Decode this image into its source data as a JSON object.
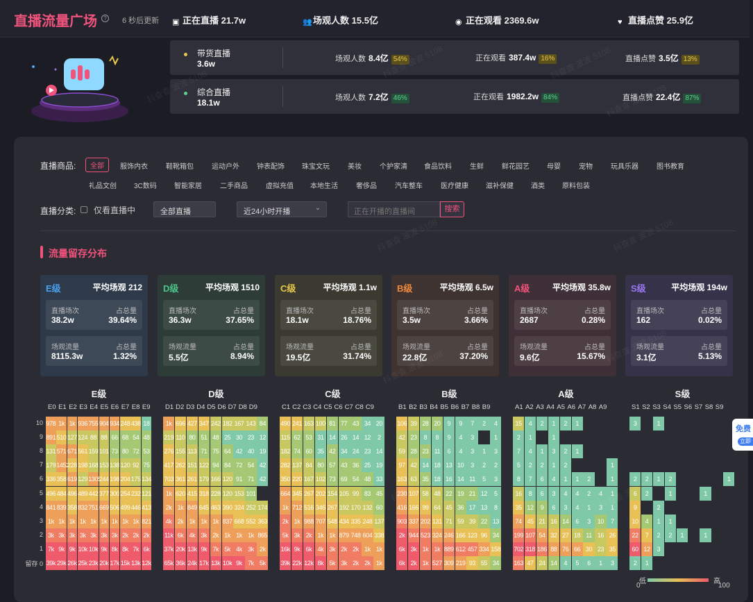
{
  "header": {
    "title": "直播流量广场",
    "update": "6 秒后更新",
    "stats": [
      {
        "icon": "calendar-icon",
        "label": "正在直播",
        "value": "21.7w"
      },
      {
        "icon": "users-icon",
        "label": "场观人数",
        "value": "15.5亿"
      },
      {
        "icon": "eye-icon",
        "label": "正在观看",
        "value": "2369.6w"
      },
      {
        "icon": "heart-icon",
        "label": "直播点赞",
        "value": "25.9亿"
      }
    ]
  },
  "categories": [
    {
      "name": "带货直播",
      "value": "3.6w",
      "dot": "#e8c84a",
      "metrics": [
        {
          "label": "场观人数",
          "value": "8.4亿",
          "pct": "54%",
          "tone": "y"
        },
        {
          "label": "正在观看",
          "value": "387.4w",
          "pct": "16%",
          "tone": "y"
        },
        {
          "label": "直播点赞",
          "value": "3.5亿",
          "pct": "13%",
          "tone": "y"
        }
      ]
    },
    {
      "name": "综合直播",
      "value": "18.1w",
      "dot": "#5ed08c",
      "metrics": [
        {
          "label": "场观人数",
          "value": "7.2亿",
          "pct": "46%",
          "tone": "g"
        },
        {
          "label": "正在观看",
          "value": "1982.2w",
          "pct": "84%",
          "tone": "g"
        },
        {
          "label": "直播点赞",
          "value": "22.4亿",
          "pct": "87%",
          "tone": "g"
        }
      ]
    }
  ],
  "filters": {
    "goods_label": "直播商品:",
    "goods": [
      "全部",
      "服饰内衣",
      "鞋靴箱包",
      "运动户外",
      "钟表配饰",
      "珠宝文玩",
      "美妆",
      "个护家清",
      "食品饮料",
      "生鲜",
      "鲜花园艺",
      "母婴",
      "宠物",
      "玩具乐器",
      "图书教育",
      "礼品文创",
      "3C数码",
      "智能家居",
      "二手商品",
      "虚拟充值",
      "本地生活",
      "奢侈品",
      "汽车整车",
      "医疗健康",
      "滋补保健",
      "酒类",
      "原料包装"
    ],
    "class_label": "直播分类:",
    "only_live": "仅看直播中",
    "select1": "全部直播",
    "select2": "近24小时开播",
    "search_placeholder": "正在开播的直播间",
    "search_btn": "搜索"
  },
  "section": {
    "title": "流量留存分布"
  },
  "levels": [
    {
      "grade": "E级",
      "color": "#4aa0f0",
      "bg": "#2e3a4a",
      "avg_label": "平均场观",
      "avg": "212",
      "b1": [
        "直播场次",
        "占总量",
        "38.2w",
        "39.64%"
      ],
      "b2": [
        "场观流量",
        "占总量",
        "8115.3w",
        "1.32%"
      ]
    },
    {
      "grade": "D级",
      "color": "#4cc48a",
      "bg": "#2d3c37",
      "avg_label": "平均场观",
      "avg": "1510",
      "b1": [
        "直播场次",
        "占总量",
        "36.3w",
        "37.65%"
      ],
      "b2": [
        "场观流量",
        "占总量",
        "5.5亿",
        "8.94%"
      ]
    },
    {
      "grade": "C级",
      "color": "#e8c84a",
      "bg": "#3b3a30",
      "avg_label": "平均场观",
      "avg": "1.1w",
      "b1": [
        "直播场次",
        "占总量",
        "18.1w",
        "18.76%"
      ],
      "b2": [
        "场观流量",
        "占总量",
        "19.5亿",
        "31.74%"
      ]
    },
    {
      "grade": "B级",
      "color": "#f08a3c",
      "bg": "#3e3330",
      "avg_label": "平均场观",
      "avg": "6.5w",
      "b1": [
        "直播场次",
        "占总量",
        "3.5w",
        "3.66%"
      ],
      "b2": [
        "场观流量",
        "占总量",
        "22.8亿",
        "37.20%"
      ]
    },
    {
      "grade": "A级",
      "color": "#f0537c",
      "bg": "#3f2f36",
      "avg_label": "平均场观",
      "avg": "35.8w",
      "b1": [
        "直播场次",
        "占总量",
        "2687",
        "0.28%"
      ],
      "b2": [
        "场观流量",
        "占总量",
        "9.6亿",
        "15.67%"
      ]
    },
    {
      "grade": "S级",
      "color": "#9b78f0",
      "bg": "#36324a",
      "avg_label": "平均场观",
      "avg": "194w",
      "b1": [
        "直播场次",
        "占总量",
        "162",
        "0.02%"
      ],
      "b2": [
        "场观流量",
        "占总量",
        "3.1亿",
        "5.13%"
      ]
    }
  ],
  "heatmap": {
    "row_labels": [
      "10",
      "9",
      "8",
      "7",
      "6",
      "5",
      "4",
      "3",
      "2",
      "1",
      "留存 0"
    ],
    "grids": [
      {
        "title": "E级",
        "cols": [
          "E0",
          "E1",
          "E2",
          "E3",
          "E4",
          "E5",
          "E6",
          "E7",
          "E8",
          "E9"
        ],
        "rows": [
          [
            "978",
            "1k",
            "1k",
            "936",
            "755",
            "904",
            "934",
            "248",
            "438",
            "18"
          ],
          [
            "891",
            "510",
            "127",
            "124",
            "88",
            "88",
            "66",
            "68",
            "54",
            "48"
          ],
          [
            "131",
            "571",
            "671",
            "561",
            "159",
            "101",
            "73",
            "80",
            "72",
            "53"
          ],
          [
            "179",
            "1452",
            "228",
            "198",
            "168",
            "153",
            "138",
            "120",
            "92",
            "75"
          ],
          [
            "336",
            "358",
            "619",
            "129",
            "1305",
            "244",
            "198",
            "204",
            "175",
            "134"
          ],
          [
            "496",
            "484",
            "496",
            "489",
            "442",
            "377",
            "300",
            "254",
            "232",
            "121"
          ],
          [
            "841",
            "839",
            "358",
            "832",
            "751",
            "669",
            "506",
            "499",
            "446",
            "413"
          ],
          [
            "1k",
            "1k",
            "1k",
            "1k",
            "1k",
            "1k",
            "1k",
            "1k",
            "1k",
            "821"
          ],
          [
            "3k",
            "3k",
            "3k",
            "3k",
            "3k",
            "3k",
            "3k",
            "2k",
            "2k",
            "2k"
          ],
          [
            "7k",
            "9k",
            "9k",
            "10k",
            "10k",
            "9k",
            "8k",
            "8k",
            "7k",
            "6k"
          ],
          [
            "39k",
            "29k",
            "26k",
            "25k",
            "23k",
            "20k",
            "17k",
            "15k",
            "13k",
            "12k"
          ]
        ]
      },
      {
        "title": "D级",
        "cols": [
          "D1",
          "D2",
          "D3",
          "D4",
          "D5",
          "D6",
          "D7",
          "D8",
          "D9"
        ],
        "rows": [
          [
            "1k",
            "696",
            "427",
            "347",
            "242",
            "182",
            "167",
            "143",
            "84"
          ],
          [
            "219",
            "110",
            "80",
            "51",
            "48",
            "25",
            "30",
            "23",
            "12"
          ],
          [
            "276",
            "155",
            "113",
            "71",
            "75",
            "64",
            "42",
            "40",
            "19"
          ],
          [
            "417",
            "262",
            "151",
            "122",
            "94",
            "84",
            "72",
            "54",
            "42"
          ],
          [
            "703",
            "361",
            "261",
            "179",
            "166",
            "120",
            "91",
            "71",
            "42"
          ],
          [
            "1k",
            "620",
            "415",
            "318",
            "228",
            "120",
            "153",
            "101",
            ""
          ],
          [
            "2k",
            "1k",
            "849",
            "645",
            "463",
            "390",
            "324",
            "252",
            "174"
          ],
          [
            "4k",
            "2k",
            "1k",
            "1k",
            "1k",
            "837",
            "668",
            "552",
            "363"
          ],
          [
            "11k",
            "6k",
            "4k",
            "3k",
            "2k",
            "1k",
            "1k",
            "1k",
            "865"
          ],
          [
            "37k",
            "20k",
            "13k",
            "9k",
            "7k",
            "5k",
            "4k",
            "3k",
            "2k"
          ],
          [
            "65k",
            "36k",
            "24k",
            "17k",
            "13k",
            "10k",
            "9k",
            "7k",
            "5k"
          ]
        ]
      },
      {
        "title": "C级",
        "cols": [
          "C1",
          "C2",
          "C3",
          "C4",
          "C5",
          "C6",
          "C7",
          "C8",
          "C9"
        ],
        "rows": [
          [
            "490",
            "241",
            "163",
            "100",
            "81",
            "77",
            "43",
            "34",
            "20"
          ],
          [
            "115",
            "62",
            "53",
            "31",
            "14",
            "26",
            "14",
            "12",
            "2"
          ],
          [
            "182",
            "74",
            "60",
            "35",
            "42",
            "34",
            "24",
            "23",
            "14"
          ],
          [
            "282",
            "137",
            "84",
            "80",
            "57",
            "43",
            "36",
            "25",
            "19"
          ],
          [
            "350",
            "220",
            "167",
            "102",
            "73",
            "69",
            "54",
            "48",
            "33"
          ],
          [
            "664",
            "345",
            "267",
            "202",
            "154",
            "105",
            "99",
            "83",
            "45"
          ],
          [
            "1k",
            "712",
            "516",
            "346",
            "267",
            "192",
            "170",
            "132",
            "60"
          ],
          [
            "2k",
            "1k",
            "988",
            "707",
            "548",
            "434",
            "335",
            "248",
            "137"
          ],
          [
            "5k",
            "3k",
            "2k",
            "1k",
            "1k",
            "879",
            "748",
            "604",
            "338"
          ],
          [
            "16k",
            "9k",
            "6k",
            "4k",
            "3k",
            "2k",
            "2k",
            "1k",
            "1k"
          ],
          [
            "39k",
            "22k",
            "12k",
            "8k",
            "5k",
            "3k",
            "2k",
            "2k",
            "1k"
          ]
        ]
      },
      {
        "title": "B级",
        "cols": [
          "B1",
          "B2",
          "B3",
          "B4",
          "B5",
          "B6",
          "B7",
          "B8",
          "B9"
        ],
        "rows": [
          [
            "106",
            "39",
            "28",
            "20",
            "9",
            "9",
            "7",
            "2",
            "4"
          ],
          [
            "42",
            "23",
            "8",
            "8",
            "9",
            "4",
            "3",
            "",
            "1"
          ],
          [
            "59",
            "28",
            "23",
            "11",
            "6",
            "4",
            "3",
            "1",
            "3"
          ],
          [
            "97",
            "42",
            "14",
            "18",
            "13",
            "10",
            "3",
            "2",
            "2"
          ],
          [
            "163",
            "63",
            "35",
            "18",
            "16",
            "14",
            "11",
            "5",
            "3"
          ],
          [
            "230",
            "107",
            "58",
            "48",
            "22",
            "19",
            "21",
            "12",
            "5"
          ],
          [
            "416",
            "166",
            "99",
            "64",
            "45",
            "36",
            "17",
            "13",
            "8"
          ],
          [
            "903",
            "337",
            "202",
            "131",
            "71",
            "59",
            "39",
            "22",
            "13"
          ],
          [
            "2k",
            "944",
            "523",
            "324",
            "246",
            "166",
            "123",
            "96",
            "34"
          ],
          [
            "6k",
            "3k",
            "1k",
            "1k",
            "889",
            "612",
            "457",
            "334",
            "158"
          ],
          [
            "6k",
            "2k",
            "1k",
            "527",
            "309",
            "219",
            "93",
            "55",
            "34"
          ]
        ]
      },
      {
        "title": "A级",
        "cols": [
          "A1",
          "A2",
          "A3",
          "A4",
          "A5",
          "A6",
          "A7",
          "A8",
          "A9"
        ],
        "rows": [
          [
            "15",
            "4",
            "2",
            "1",
            "2",
            "1",
            "",
            "",
            ""
          ],
          [
            "2",
            "1",
            "",
            "1",
            "",
            "",
            "",
            "",
            ""
          ],
          [
            "7",
            "4",
            "1",
            "3",
            "2",
            "1",
            "",
            "",
            ""
          ],
          [
            "5",
            "2",
            "2",
            "1",
            "2",
            "",
            "",
            "",
            "1"
          ],
          [
            "8",
            "7",
            "6",
            "4",
            "1",
            "1",
            "2",
            "",
            "1"
          ],
          [
            "16",
            "8",
            "6",
            "3",
            "4",
            "4",
            "2",
            "4",
            "1"
          ],
          [
            "35",
            "12",
            "9",
            "6",
            "3",
            "4",
            "1",
            "3",
            "1"
          ],
          [
            "74",
            "45",
            "21",
            "16",
            "14",
            "6",
            "3",
            "10",
            "7"
          ],
          [
            "199",
            "107",
            "54",
            "32",
            "27",
            "18",
            "11",
            "16",
            "26"
          ],
          [
            "702",
            "318",
            "186",
            "88",
            "76",
            "66",
            "30",
            "23",
            "35"
          ],
          [
            "163",
            "47",
            "24",
            "14",
            "4",
            "5",
            "6",
            "1",
            "3"
          ]
        ]
      },
      {
        "title": "S级",
        "cols": [
          "S1",
          "S2",
          "S3",
          "S4",
          "S5",
          "S6",
          "S7",
          "S8",
          "S9"
        ],
        "rows": [
          [
            "3",
            "",
            "1",
            "",
            "",
            "",
            "",
            "",
            ""
          ],
          [
            "",
            "",
            "",
            "",
            "",
            "",
            "",
            "",
            ""
          ],
          [
            "",
            "",
            "",
            "",
            "",
            "",
            "",
            "",
            ""
          ],
          [
            "",
            "",
            "",
            "",
            "",
            "",
            "",
            "",
            ""
          ],
          [
            "2",
            "2",
            "1",
            "2",
            "",
            "",
            "",
            "",
            "1"
          ],
          [
            "6",
            "2",
            "",
            "1",
            "",
            "",
            "1",
            "",
            ""
          ],
          [
            "9",
            "",
            "2",
            "",
            "",
            "",
            "",
            "",
            ""
          ],
          [
            "10",
            "4",
            "1",
            "1",
            "",
            "",
            "",
            "",
            ""
          ],
          [
            "22",
            "7",
            "2",
            "2",
            "1",
            "",
            "1",
            "",
            ""
          ],
          [
            "60",
            "12",
            "3",
            "",
            "",
            "",
            "",
            "",
            ""
          ],
          [
            "2",
            "1",
            "",
            "",
            "",
            "",
            "",
            "",
            ""
          ]
        ]
      }
    ]
  },
  "legend": {
    "low": "低",
    "high": "高",
    "min": "0",
    "max": "100"
  },
  "side_tab": {
    "a": "免费",
    "b": "立即"
  },
  "watermark": "抖查查 波波 5108"
}
